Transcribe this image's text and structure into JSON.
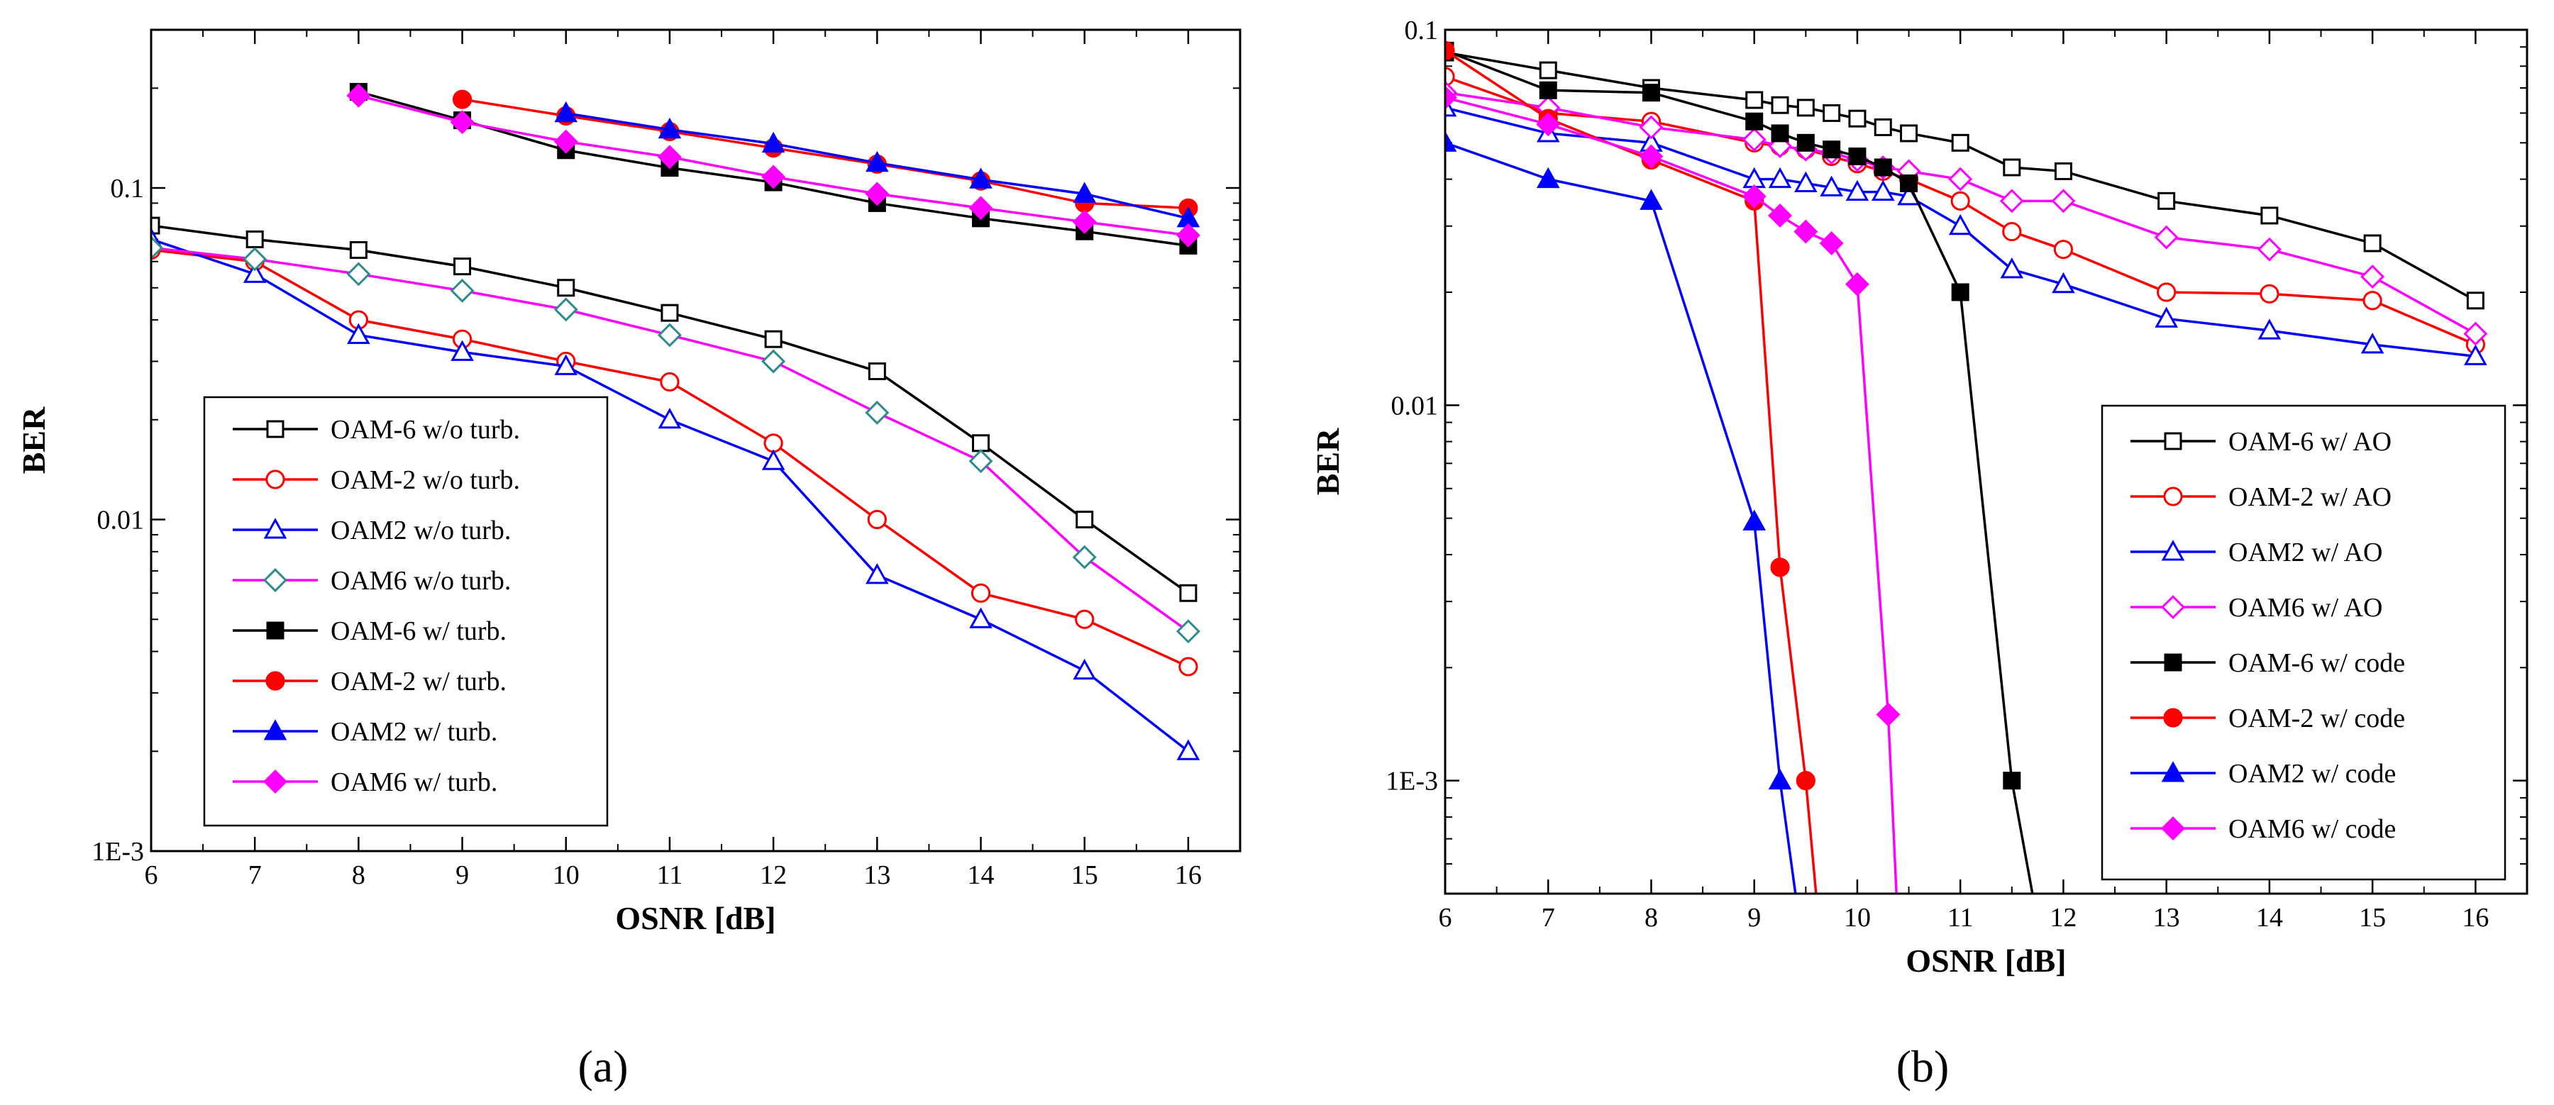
{
  "chart_data": [
    {
      "type": "line",
      "panel_label": "(a)",
      "xlabel": "OSNR [dB]",
      "ylabel": "BER",
      "x_scale": "linear",
      "y_scale": "log",
      "xlim": [
        6,
        16.5
      ],
      "ylim": [
        0.001,
        0.3
      ],
      "x_ticks": [
        "6",
        "7",
        "8",
        "9",
        "10",
        "11",
        "12",
        "13",
        "14",
        "15",
        "16"
      ],
      "y_ticks": [
        {
          "v": 0.1,
          "label": "0.1"
        },
        {
          "v": 0.01,
          "label": "0.01"
        },
        {
          "v": 0.001,
          "label": "1E-3"
        }
      ],
      "legend_position": "lower-left",
      "series": [
        {
          "name": "OAM-6 w/o turb.",
          "color": "#000000",
          "marker": "square-open",
          "x": [
            6,
            7,
            8,
            9,
            10,
            11,
            12,
            13,
            14,
            15,
            16
          ],
          "y": [
            0.077,
            0.07,
            0.065,
            0.058,
            0.05,
            0.042,
            0.035,
            0.028,
            0.017,
            0.01,
            0.006
          ]
        },
        {
          "name": "OAM-2 w/o turb.",
          "color": "#ff0000",
          "marker": "circle-open",
          "x": [
            6,
            7,
            8,
            9,
            10,
            11,
            12,
            13,
            14,
            15,
            16
          ],
          "y": [
            0.065,
            0.06,
            0.04,
            0.035,
            0.03,
            0.026,
            0.017,
            0.01,
            0.006,
            0.005,
            0.0036
          ]
        },
        {
          "name": "OAM2 w/o turb.",
          "color": "#0000ff",
          "marker": "triangle-open",
          "x": [
            6,
            7,
            8,
            9,
            10,
            11,
            12,
            13,
            14,
            15,
            16
          ],
          "y": [
            0.07,
            0.055,
            0.036,
            0.032,
            0.029,
            0.02,
            0.015,
            0.0068,
            0.005,
            0.0035,
            0.002
          ]
        },
        {
          "name": "OAM6 w/o turb.",
          "color": "#ff00ff",
          "marker": "diamond-open",
          "marker_color": "#2e8b8b",
          "x": [
            6,
            7,
            8,
            9,
            10,
            11,
            12,
            13,
            14,
            15,
            16
          ],
          "y": [
            0.066,
            0.061,
            0.055,
            0.049,
            0.043,
            0.036,
            0.03,
            0.021,
            0.015,
            0.0077,
            0.0046
          ]
        },
        {
          "name": "OAM-6 w/ turb.",
          "color": "#000000",
          "marker": "square-filled",
          "x": [
            8,
            9,
            10,
            11,
            12,
            13,
            14,
            15,
            16
          ],
          "y": [
            0.195,
            0.16,
            0.13,
            0.115,
            0.104,
            0.09,
            0.081,
            0.074,
            0.067
          ]
        },
        {
          "name": "OAM-2 w/ turb.",
          "color": "#ff0000",
          "marker": "circle-filled",
          "x": [
            9,
            10,
            11,
            12,
            13,
            14,
            15,
            16
          ],
          "y": [
            0.185,
            0.165,
            0.148,
            0.132,
            0.118,
            0.105,
            0.09,
            0.087
          ]
        },
        {
          "name": "OAM2 w/ turb.",
          "color": "#0000ff",
          "marker": "triangle-filled",
          "x": [
            10,
            11,
            12,
            13,
            14,
            15,
            16
          ],
          "y": [
            0.168,
            0.15,
            0.136,
            0.119,
            0.106,
            0.096,
            0.081
          ]
        },
        {
          "name": "OAM6 w/ turb.",
          "color": "#ff00ff",
          "marker": "diamond-filled",
          "x": [
            8,
            9,
            10,
            11,
            12,
            13,
            14,
            15,
            16
          ],
          "y": [
            0.19,
            0.158,
            0.138,
            0.124,
            0.108,
            0.096,
            0.087,
            0.079,
            0.072
          ]
        }
      ]
    },
    {
      "type": "line",
      "panel_label": "(b)",
      "xlabel": "OSNR [dB]",
      "ylabel": "BER",
      "x_scale": "linear",
      "y_scale": "log",
      "xlim": [
        6,
        16.5
      ],
      "ylim": [
        0.0005,
        0.1
      ],
      "x_ticks": [
        "6",
        "7",
        "8",
        "9",
        "10",
        "11",
        "12",
        "13",
        "14",
        "15",
        "16"
      ],
      "y_ticks": [
        {
          "v": 0.1,
          "label": "0.1"
        },
        {
          "v": 0.01,
          "label": "0.01"
        },
        {
          "v": 0.001,
          "label": "1E-3"
        }
      ],
      "legend_position": "lower-right",
      "series": [
        {
          "name": "OAM-6 w/ AO",
          "color": "#000000",
          "marker": "square-open",
          "x": [
            6,
            7,
            8,
            9,
            9.25,
            9.5,
            9.75,
            10,
            10.25,
            10.5,
            11,
            11.5,
            12,
            13,
            14,
            15,
            16
          ],
          "y": [
            0.087,
            0.078,
            0.07,
            0.065,
            0.063,
            0.062,
            0.06,
            0.058,
            0.055,
            0.053,
            0.05,
            0.043,
            0.042,
            0.035,
            0.032,
            0.027,
            0.019
          ]
        },
        {
          "name": "OAM-2 w/ AO",
          "color": "#ff0000",
          "marker": "circle-open",
          "x": [
            6,
            7,
            8,
            9,
            9.25,
            9.5,
            9.75,
            10,
            10.25,
            10.5,
            11,
            11.5,
            12,
            13,
            14,
            15,
            16
          ],
          "y": [
            0.075,
            0.06,
            0.057,
            0.05,
            0.049,
            0.048,
            0.046,
            0.044,
            0.042,
            0.04,
            0.035,
            0.029,
            0.026,
            0.02,
            0.0198,
            0.019,
            0.0145
          ]
        },
        {
          "name": "OAM2 w/ AO",
          "color": "#0000ff",
          "marker": "triangle-open",
          "x": [
            6,
            7,
            8,
            9,
            9.25,
            9.5,
            9.75,
            10,
            10.25,
            10.5,
            11,
            11.5,
            12,
            13,
            14,
            15,
            16
          ],
          "y": [
            0.062,
            0.053,
            0.05,
            0.04,
            0.04,
            0.039,
            0.038,
            0.037,
            0.037,
            0.036,
            0.03,
            0.023,
            0.021,
            0.017,
            0.0158,
            0.0145,
            0.0135
          ]
        },
        {
          "name": "OAM6 w/ AO",
          "color": "#ff00ff",
          "marker": "diamond-open",
          "x": [
            6,
            7,
            8,
            9,
            9.25,
            9.5,
            9.75,
            10,
            10.25,
            10.5,
            11,
            11.5,
            12,
            13,
            14,
            15,
            16
          ],
          "y": [
            0.068,
            0.062,
            0.055,
            0.051,
            0.049,
            0.048,
            0.047,
            0.045,
            0.043,
            0.042,
            0.04,
            0.035,
            0.035,
            0.028,
            0.026,
            0.022,
            0.0155
          ]
        },
        {
          "name": "OAM-6 w/ code",
          "color": "#000000",
          "marker": "square-filled",
          "x": [
            6,
            7,
            8,
            9,
            9.25,
            9.5,
            9.75,
            10,
            10.25,
            10.5,
            11,
            11.5,
            11.7
          ],
          "y": [
            0.088,
            0.069,
            0.068,
            0.057,
            0.053,
            0.05,
            0.048,
            0.046,
            0.043,
            0.039,
            0.02,
            0.001,
            0.0005
          ]
        },
        {
          "name": "OAM-2 w/ code",
          "color": "#ff0000",
          "marker": "circle-filled",
          "x": [
            6,
            7,
            8,
            9,
            9.25,
            9.5,
            9.6
          ],
          "y": [
            0.088,
            0.058,
            0.045,
            0.035,
            0.0037,
            0.001,
            0.0005
          ]
        },
        {
          "name": "OAM2 w/ code",
          "color": "#0000ff",
          "marker": "triangle-filled",
          "x": [
            6,
            7,
            8,
            9,
            9.25,
            9.4
          ],
          "y": [
            0.05,
            0.04,
            0.035,
            0.0049,
            0.001,
            0.0005
          ]
        },
        {
          "name": "OAM6 w/ code",
          "color": "#ff00ff",
          "marker": "diamond-filled",
          "x": [
            6,
            7,
            8,
            9,
            9.25,
            9.5,
            9.75,
            10,
            10.3,
            10.38
          ],
          "y": [
            0.066,
            0.056,
            0.046,
            0.036,
            0.032,
            0.029,
            0.027,
            0.021,
            0.0015,
            0.0005
          ]
        }
      ]
    }
  ]
}
